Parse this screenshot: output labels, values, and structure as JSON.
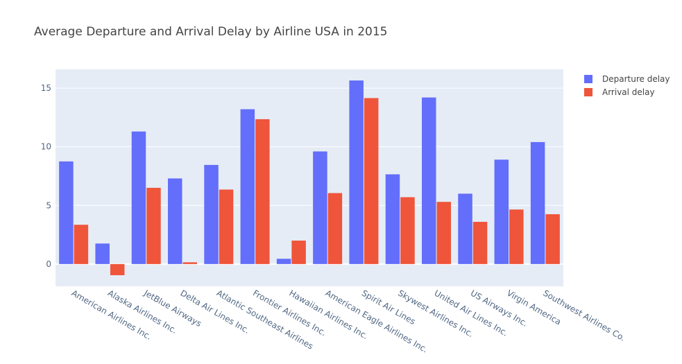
{
  "chart_data": {
    "type": "bar",
    "title": "Average Departure and Arrival Delay by Airline USA in 2015",
    "xlabel": "",
    "ylabel": "",
    "ylim": [
      -1.9,
      16.6
    ],
    "yticks": [
      0,
      5,
      10,
      15
    ],
    "grid": true,
    "legend_position": "top-right",
    "categories": [
      "American Airlines Inc.",
      "Alaska Airlines Inc.",
      "JetBlue Airways",
      "Delta Air Lines Inc.",
      "Atlantic Southeast Airlines",
      "Frontier Airlines Inc.",
      "Hawaiian Airlines Inc.",
      "American Eagle Airlines Inc.",
      "Spirit Air Lines",
      "Skywest Airlines Inc.",
      "United Air Lines Inc.",
      "US Airways Inc.",
      "Virgin America",
      "Southwest Airlines Co."
    ],
    "series": [
      {
        "name": "Departure delay",
        "color": "#636efa",
        "values": [
          8.75,
          1.75,
          11.3,
          7.3,
          8.45,
          13.2,
          0.45,
          9.6,
          15.65,
          7.65,
          14.2,
          6.0,
          8.9,
          10.4
        ]
      },
      {
        "name": "Arrival delay",
        "color": "#ef553b",
        "values": [
          3.35,
          -0.95,
          6.5,
          0.15,
          6.35,
          12.35,
          2.0,
          6.05,
          14.15,
          5.7,
          5.3,
          3.6,
          4.65,
          4.25
        ]
      }
    ]
  },
  "colors": {
    "plot_background": "#e5ecf6",
    "grid": "#ffffff"
  }
}
